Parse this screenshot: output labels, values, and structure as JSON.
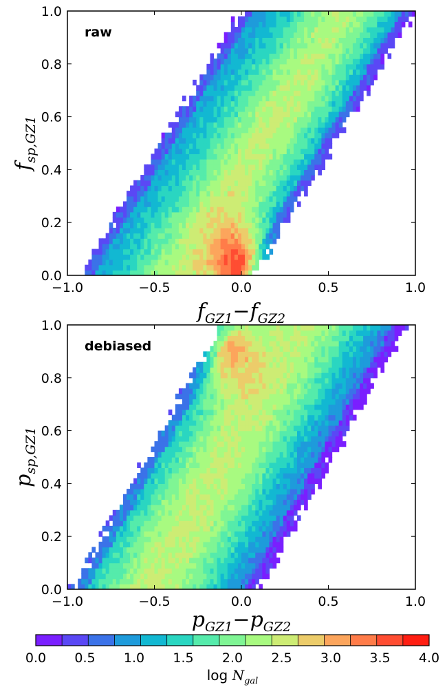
{
  "chart_data": [
    {
      "type": "heatmap",
      "panel_label": "raw",
      "x_var": "f",
      "x_sub_a": "GZ1",
      "x_minus": "−",
      "x_var_b": "f",
      "x_sub_b": "GZ2",
      "y_var": "f",
      "y_sub": "sp,GZ1",
      "xlim": [
        -1.0,
        1.0
      ],
      "ylim": [
        0.0,
        1.0
      ],
      "xticks": [
        "−1.0",
        "−0.5",
        "0.0",
        "0.5",
        "1.0"
      ],
      "yticks": [
        "0.0",
        "0.2",
        "0.4",
        "0.6",
        "0.8",
        "1.0"
      ],
      "band": {
        "lower_edge_at_y0": -0.93,
        "upper_edge_at_y0": 0.07,
        "slope": 0.93
      },
      "peak": {
        "x": -0.03,
        "y": 0.04,
        "value": 4.0
      }
    },
    {
      "type": "heatmap",
      "panel_label": "debiased",
      "x_var": "p",
      "x_sub_a": "GZ1",
      "x_minus": "−",
      "x_var_b": "p",
      "x_sub_b": "GZ2",
      "y_var": "p",
      "y_sub": "sp,GZ1",
      "xlim": [
        -1.0,
        1.0
      ],
      "ylim": [
        0.0,
        1.0
      ],
      "xticks": [
        "−1.0",
        "−0.5",
        "0.0",
        "0.5",
        "1.0"
      ],
      "yticks": [
        "0.0",
        "0.2",
        "0.4",
        "0.6",
        "0.8",
        "1.0"
      ],
      "band": {
        "lower_edge_at_y0": -0.97,
        "upper_edge_at_y0": 0.1,
        "slope": 0.85
      },
      "peak": {
        "x": -0.05,
        "y": 0.9,
        "value": 3.2
      }
    }
  ],
  "colorbar": {
    "label_prefix": "log ",
    "label_var": "N",
    "label_sub": "gal",
    "range": [
      0.0,
      4.0
    ],
    "ticks": [
      "0.0",
      "0.5",
      "1.0",
      "1.5",
      "2.0",
      "2.5",
      "3.0",
      "3.5",
      "4.0"
    ],
    "levels": [
      "#7a1fff",
      "#5a48f5",
      "#3b72e8",
      "#1e9bdb",
      "#12b8d2",
      "#2ad6c1",
      "#55ebab",
      "#7ff594",
      "#a8fa80",
      "#cdec74",
      "#eccc6a",
      "#fca55c",
      "#ff7c49",
      "#ff4d32",
      "#ff1e12"
    ]
  }
}
